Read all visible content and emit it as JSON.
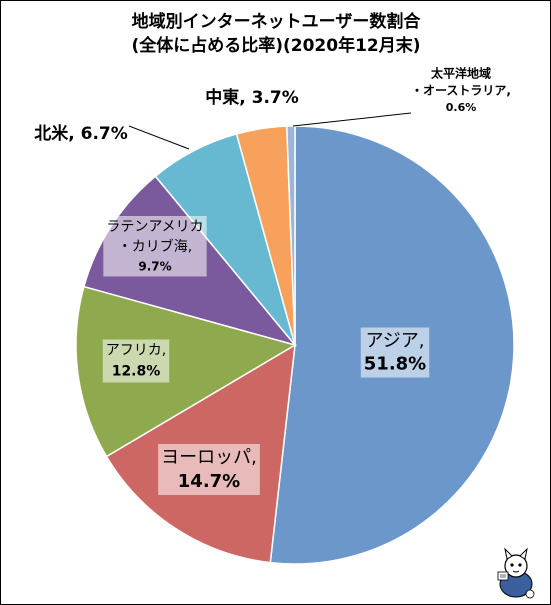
{
  "chart_data": {
    "type": "pie",
    "title_line1": "地域別インターネットユーザー数割合",
    "title_line2": "(全体に占める比率)(2020年12月末)",
    "start_angle_deg": 0,
    "direction": "clockwise",
    "slices": [
      {
        "id": "asia",
        "name": "アジア",
        "value": 51.8,
        "line1": "アジア,",
        "line2": "51.8%",
        "color": "#6b97cb"
      },
      {
        "id": "europe",
        "name": "ヨーロッパ",
        "value": 14.7,
        "line1": "ヨーロッパ,",
        "line2": "14.7%",
        "color": "#cd6764"
      },
      {
        "id": "africa",
        "name": "アフリカ",
        "value": 12.8,
        "line1": "アフリカ,",
        "line2": "12.8%",
        "color": "#8faa4e"
      },
      {
        "id": "latam",
        "name": "ラテンアメリカ・カリブ海",
        "value": 9.7,
        "line1": "ラテンアメリカ",
        "line2": "・カリブ海,",
        "line3": "9.7%",
        "color": "#7a5a9c"
      },
      {
        "id": "na",
        "name": "北米",
        "value": 6.7,
        "line1": "北米, 6.7%",
        "color": "#66b9d0"
      },
      {
        "id": "me",
        "name": "中東",
        "value": 3.7,
        "line1": "中東, 3.7%",
        "color": "#f7a15c"
      },
      {
        "id": "oceania",
        "name": "太平洋地域・オーストラリア",
        "value": 0.6,
        "line1": "太平洋地域",
        "line2": "・オーストラリア,",
        "line3": "0.6%",
        "color": "#9db5d8"
      }
    ]
  },
  "colors": {
    "slice_stroke": "#ffffff",
    "label_box": "rgba(255,255,255,0.55)",
    "leader_line": "#000000"
  },
  "watermark": {
    "icon": "mascot-cat-icon"
  }
}
